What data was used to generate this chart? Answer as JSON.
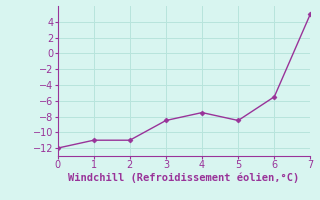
{
  "x": [
    0,
    1,
    2,
    3,
    4,
    5,
    6,
    7
  ],
  "y": [
    -12,
    -11,
    -11,
    -8.5,
    -7.5,
    -8.5,
    -5.5,
    5
  ],
  "line_color": "#993399",
  "marker": "D",
  "marker_size": 2.5,
  "xlabel": "Windchill (Refroidissement éolien,°C)",
  "xlabel_color": "#993399",
  "xlim": [
    0,
    7
  ],
  "ylim": [
    -13,
    6
  ],
  "yticks": [
    -12,
    -10,
    -8,
    -6,
    -4,
    -2,
    0,
    2,
    4
  ],
  "xticks": [
    0,
    1,
    2,
    3,
    4,
    5,
    6,
    7
  ],
  "background_color": "#d8f5f0",
  "grid_color": "#b8e4dc",
  "tick_color": "#993399",
  "xlabel_fontsize": 7.5,
  "tick_fontsize": 7
}
